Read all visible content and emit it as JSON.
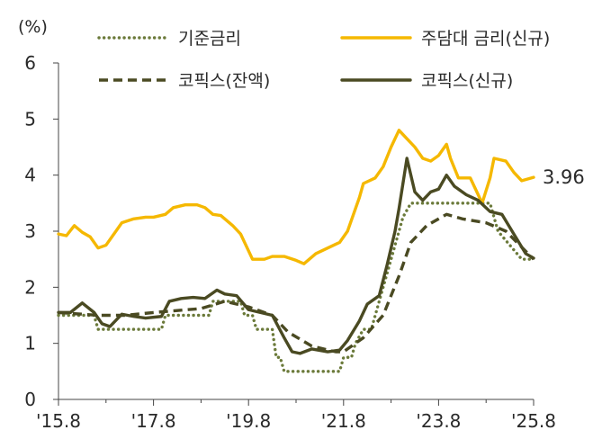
{
  "chart_data": {
    "type": "line",
    "unit": "(%)",
    "ylim": [
      0,
      6
    ],
    "yticks": [
      0,
      1,
      2,
      3,
      4,
      5,
      6
    ],
    "xlim": [
      "2015-08",
      "2025-08"
    ],
    "x_tick_labels": [
      {
        "label": "'15.8",
        "x": "2015-08"
      },
      {
        "label": "'17.8",
        "x": "2017-08"
      },
      {
        "label": "'19.8",
        "x": "2019-08"
      },
      {
        "label": "'21.8",
        "x": "2021-08"
      },
      {
        "label": "'23.8",
        "x": "2023-08"
      },
      {
        "label": "'25.8",
        "x": "2025-08"
      }
    ],
    "grid": false,
    "legend_placement": "top",
    "end_annotation": {
      "label": "3.96",
      "series": "주담대 금리(신규)"
    },
    "series": [
      {
        "name": "기준금리",
        "style": "dotted",
        "color": "#6b7a3a",
        "points": [
          [
            "2015-08",
            1.5
          ],
          [
            "2016-05",
            1.5
          ],
          [
            "2016-06",
            1.25
          ],
          [
            "2017-10",
            1.25
          ],
          [
            "2017-11",
            1.5
          ],
          [
            "2018-10",
            1.5
          ],
          [
            "2018-11",
            1.75
          ],
          [
            "2019-06",
            1.75
          ],
          [
            "2019-07",
            1.5
          ],
          [
            "2019-09",
            1.5
          ],
          [
            "2019-10",
            1.25
          ],
          [
            "2020-02",
            1.25
          ],
          [
            "2020-03",
            0.75
          ],
          [
            "2020-04",
            0.75
          ],
          [
            "2020-05",
            0.5
          ],
          [
            "2021-07",
            0.5
          ],
          [
            "2021-08",
            0.75
          ],
          [
            "2021-10",
            0.75
          ],
          [
            "2021-11",
            1.0
          ],
          [
            "2022-01",
            1.25
          ],
          [
            "2022-03",
            1.25
          ],
          [
            "2022-04",
            1.5
          ],
          [
            "2022-05",
            1.75
          ],
          [
            "2022-07",
            2.25
          ],
          [
            "2022-08",
            2.5
          ],
          [
            "2022-10",
            3.0
          ],
          [
            "2022-11",
            3.25
          ],
          [
            "2023-01",
            3.5
          ],
          [
            "2024-09",
            3.5
          ],
          [
            "2024-10",
            3.25
          ],
          [
            "2024-11",
            3.0
          ],
          [
            "2025-02",
            2.75
          ],
          [
            "2025-05",
            2.5
          ],
          [
            "2025-08",
            2.5
          ]
        ]
      },
      {
        "name": "주담대 금리(신규)",
        "style": "solid",
        "color": "#f5b800",
        "points": [
          [
            "2015-08",
            2.95
          ],
          [
            "2015-10",
            2.92
          ],
          [
            "2015-12",
            3.1
          ],
          [
            "2016-02",
            2.98
          ],
          [
            "2016-04",
            2.9
          ],
          [
            "2016-06",
            2.7
          ],
          [
            "2016-08",
            2.75
          ],
          [
            "2016-10",
            2.95
          ],
          [
            "2016-12",
            3.15
          ],
          [
            "2017-03",
            3.22
          ],
          [
            "2017-06",
            3.25
          ],
          [
            "2017-08",
            3.25
          ],
          [
            "2017-11",
            3.3
          ],
          [
            "2018-01",
            3.42
          ],
          [
            "2018-04",
            3.47
          ],
          [
            "2018-07",
            3.47
          ],
          [
            "2018-09",
            3.42
          ],
          [
            "2018-11",
            3.3
          ],
          [
            "2019-01",
            3.28
          ],
          [
            "2019-04",
            3.1
          ],
          [
            "2019-06",
            2.95
          ],
          [
            "2019-08",
            2.65
          ],
          [
            "2019-09",
            2.5
          ],
          [
            "2019-12",
            2.5
          ],
          [
            "2020-02",
            2.55
          ],
          [
            "2020-05",
            2.55
          ],
          [
            "2020-08",
            2.48
          ],
          [
            "2020-10",
            2.42
          ],
          [
            "2021-01",
            2.6
          ],
          [
            "2021-04",
            2.7
          ],
          [
            "2021-07",
            2.8
          ],
          [
            "2021-09",
            3.0
          ],
          [
            "2021-11",
            3.4
          ],
          [
            "2021-12",
            3.6
          ],
          [
            "2022-01",
            3.85
          ],
          [
            "2022-04",
            3.95
          ],
          [
            "2022-06",
            4.15
          ],
          [
            "2022-08",
            4.5
          ],
          [
            "2022-10",
            4.8
          ],
          [
            "2022-12",
            4.65
          ],
          [
            "2023-02",
            4.5
          ],
          [
            "2023-04",
            4.3
          ],
          [
            "2023-06",
            4.25
          ],
          [
            "2023-08",
            4.35
          ],
          [
            "2023-10",
            4.55
          ],
          [
            "2023-11",
            4.3
          ],
          [
            "2024-01",
            3.95
          ],
          [
            "2024-04",
            3.95
          ],
          [
            "2024-06",
            3.65
          ],
          [
            "2024-07",
            3.5
          ],
          [
            "2024-09",
            3.95
          ],
          [
            "2024-10",
            4.3
          ],
          [
            "2025-01",
            4.25
          ],
          [
            "2025-03",
            4.05
          ],
          [
            "2025-05",
            3.9
          ],
          [
            "2025-08",
            3.96
          ]
        ]
      },
      {
        "name": "코픽스(잔액)",
        "style": "dashed",
        "color": "#4a4a22",
        "points": [
          [
            "2015-08",
            1.55
          ],
          [
            "2016-06",
            1.5
          ],
          [
            "2017-01",
            1.5
          ],
          [
            "2017-08",
            1.55
          ],
          [
            "2018-08",
            1.62
          ],
          [
            "2019-02",
            1.75
          ],
          [
            "2019-08",
            1.65
          ],
          [
            "2020-02",
            1.5
          ],
          [
            "2020-06",
            1.2
          ],
          [
            "2020-12",
            0.95
          ],
          [
            "2021-06",
            0.85
          ],
          [
            "2021-08",
            0.85
          ],
          [
            "2022-01",
            1.1
          ],
          [
            "2022-06",
            1.5
          ],
          [
            "2022-10",
            2.2
          ],
          [
            "2023-01",
            2.8
          ],
          [
            "2023-05",
            3.1
          ],
          [
            "2023-10",
            3.3
          ],
          [
            "2024-02",
            3.22
          ],
          [
            "2024-08",
            3.15
          ],
          [
            "2025-01",
            3.0
          ],
          [
            "2025-08",
            2.5
          ]
        ]
      },
      {
        "name": "코픽스(신규)",
        "style": "solid",
        "color": "#4a4a22",
        "points": [
          [
            "2015-08",
            1.55
          ],
          [
            "2015-11",
            1.55
          ],
          [
            "2016-02",
            1.72
          ],
          [
            "2016-05",
            1.55
          ],
          [
            "2016-07",
            1.35
          ],
          [
            "2016-09",
            1.3
          ],
          [
            "2016-12",
            1.52
          ],
          [
            "2017-03",
            1.48
          ],
          [
            "2017-06",
            1.45
          ],
          [
            "2017-10",
            1.48
          ],
          [
            "2017-12",
            1.75
          ],
          [
            "2018-03",
            1.8
          ],
          [
            "2018-06",
            1.82
          ],
          [
            "2018-09",
            1.8
          ],
          [
            "2018-12",
            1.95
          ],
          [
            "2019-02",
            1.88
          ],
          [
            "2019-05",
            1.85
          ],
          [
            "2019-08",
            1.6
          ],
          [
            "2019-11",
            1.55
          ],
          [
            "2020-02",
            1.5
          ],
          [
            "2020-05",
            1.1
          ],
          [
            "2020-07",
            0.85
          ],
          [
            "2020-09",
            0.82
          ],
          [
            "2020-12",
            0.9
          ],
          [
            "2021-04",
            0.85
          ],
          [
            "2021-07",
            0.88
          ],
          [
            "2021-09",
            1.05
          ],
          [
            "2021-12",
            1.4
          ],
          [
            "2022-02",
            1.7
          ],
          [
            "2022-05",
            1.85
          ],
          [
            "2022-07",
            2.4
          ],
          [
            "2022-09",
            3.0
          ],
          [
            "2022-10",
            3.4
          ],
          [
            "2022-12",
            4.3
          ],
          [
            "2023-02",
            3.7
          ],
          [
            "2023-04",
            3.55
          ],
          [
            "2023-06",
            3.7
          ],
          [
            "2023-08",
            3.75
          ],
          [
            "2023-10",
            4.0
          ],
          [
            "2023-12",
            3.8
          ],
          [
            "2024-03",
            3.65
          ],
          [
            "2024-06",
            3.55
          ],
          [
            "2024-09",
            3.35
          ],
          [
            "2024-12",
            3.3
          ],
          [
            "2025-03",
            2.95
          ],
          [
            "2025-06",
            2.6
          ],
          [
            "2025-08",
            2.52
          ]
        ]
      }
    ]
  }
}
